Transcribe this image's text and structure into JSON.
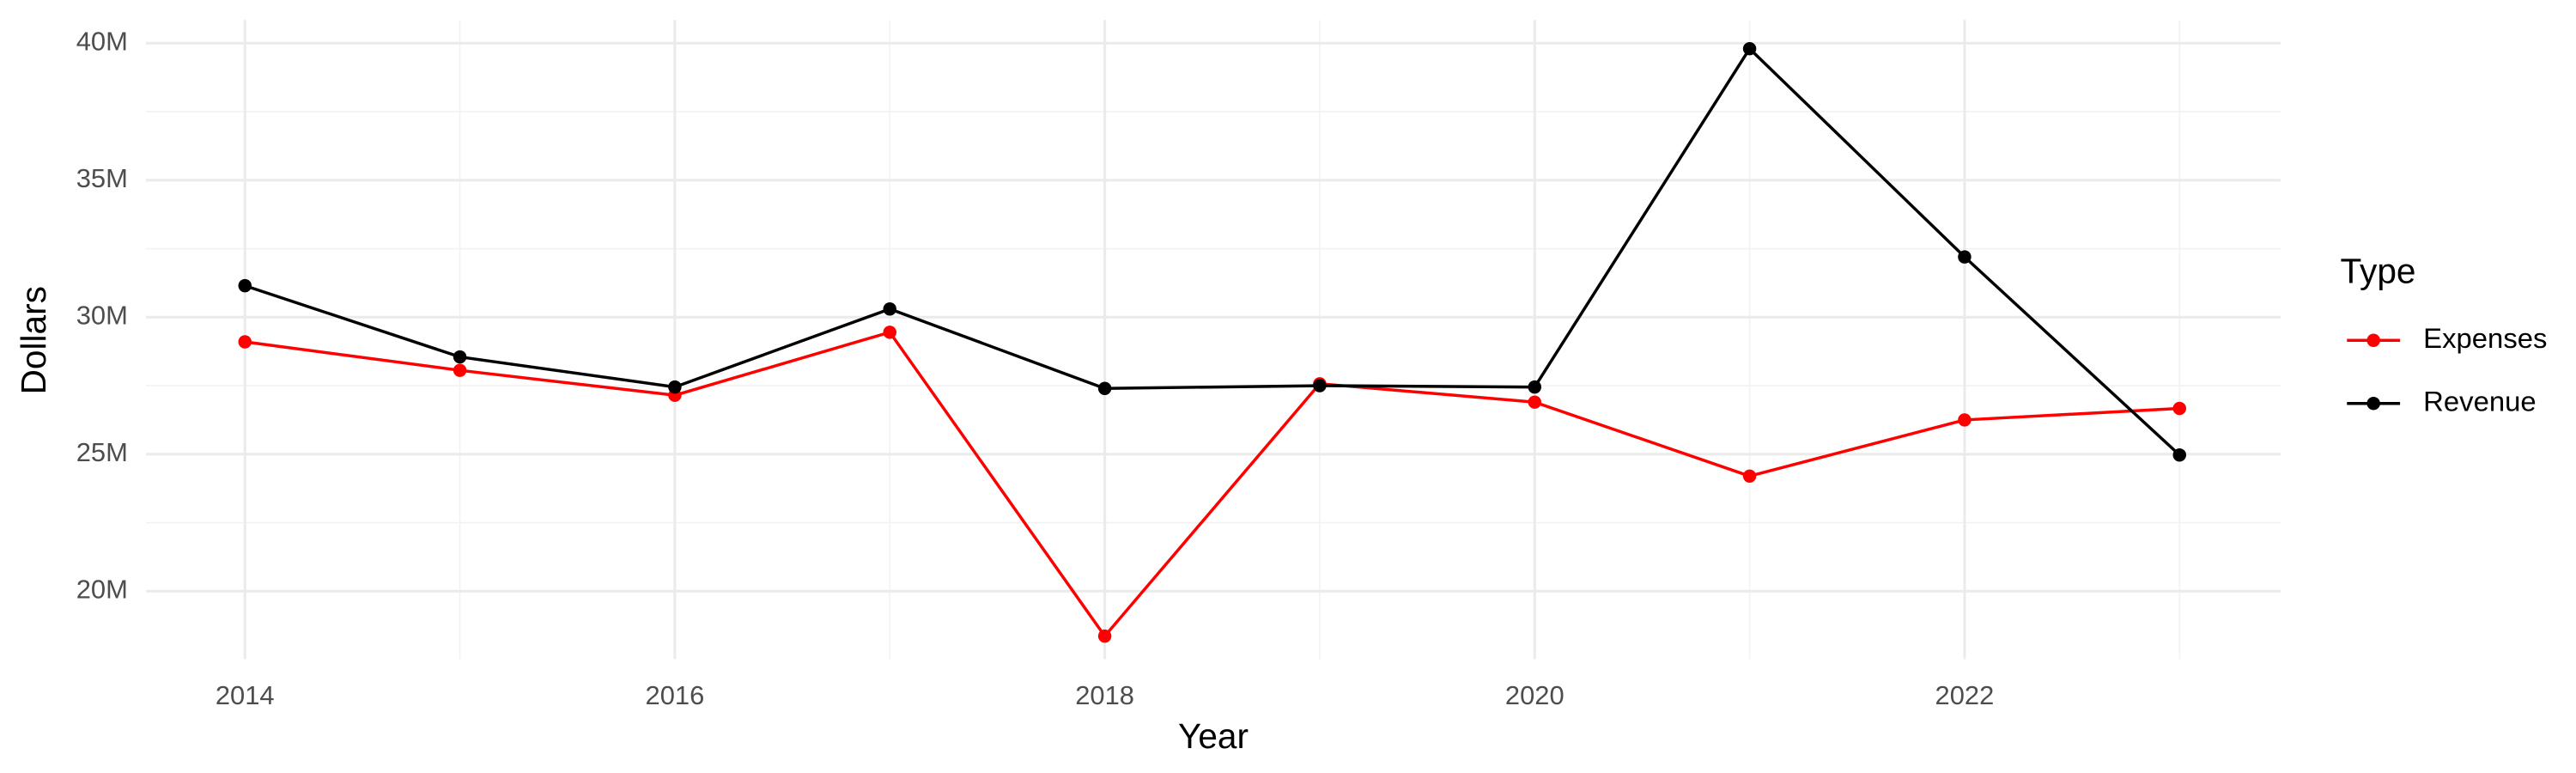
{
  "chart_data": {
    "type": "line",
    "x_label": "Year",
    "y_label": "Dollars",
    "legend_title": "Type",
    "legend_position": "right",
    "grid": true,
    "x": [
      2014,
      2015,
      2016,
      2017,
      2018,
      2019,
      2020,
      2021,
      2022,
      2023
    ],
    "series": [
      {
        "name": "Expenses",
        "color": "#ff0000",
        "values": [
          29100000,
          28060000,
          27150000,
          29450000,
          18360000,
          27570000,
          26900000,
          24200000,
          26250000,
          26670000
        ]
      },
      {
        "name": "Revenue",
        "color": "#000000",
        "values": [
          31150000,
          28550000,
          27450000,
          30300000,
          27400000,
          27500000,
          27450000,
          39800000,
          32200000,
          24970000
        ]
      }
    ],
    "xlim": [
      2013.54,
      2023.47
    ],
    "xticks": [
      2014,
      2016,
      2018,
      2020,
      2022
    ],
    "ylim": [
      17520000,
      40850000
    ],
    "yticks": [
      {
        "value": 20000000,
        "label": "20M"
      },
      {
        "value": 25000000,
        "label": "25M"
      },
      {
        "value": 30000000,
        "label": "30M"
      },
      {
        "value": 35000000,
        "label": "35M"
      },
      {
        "value": 40000000,
        "label": "40M"
      }
    ]
  }
}
